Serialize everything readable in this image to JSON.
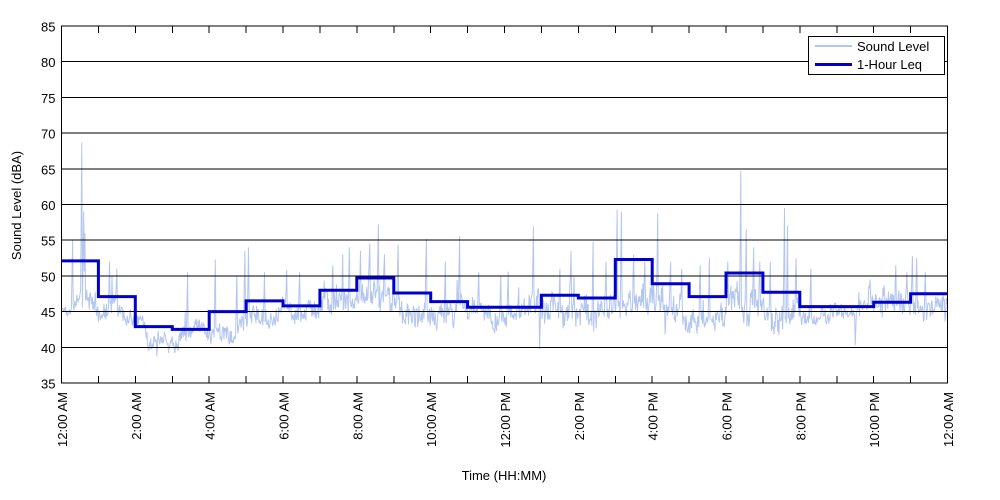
{
  "legend": {
    "items": [
      {
        "label": "Sound Level",
        "color": "#b3c6f0"
      },
      {
        "label": "1-Hour Leq",
        "color": "#0000cc"
      }
    ]
  },
  "chart_data": {
    "type": "line",
    "title": "",
    "xlabel": "Time (HH:MM)",
    "ylabel": "Sound Level (dBA)",
    "ylim": [
      35,
      85
    ],
    "xlim_hours": [
      0,
      24
    ],
    "grid": "horizontal-only",
    "legend_position": "top-right",
    "yticks": [
      35,
      40,
      45,
      50,
      55,
      60,
      65,
      70,
      75,
      80,
      85
    ],
    "minor_xtick_every_hours": 1,
    "xticks": [
      {
        "hour": 0,
        "label": "12:00 AM"
      },
      {
        "hour": 2,
        "label": "2:00 AM"
      },
      {
        "hour": 4,
        "label": "4:00 AM"
      },
      {
        "hour": 6,
        "label": "6:00 AM"
      },
      {
        "hour": 8,
        "label": "8:00 AM"
      },
      {
        "hour": 10,
        "label": "10:00 AM"
      },
      {
        "hour": 12,
        "label": "12:00 PM"
      },
      {
        "hour": 14,
        "label": "2:00 PM"
      },
      {
        "hour": 16,
        "label": "4:00 PM"
      },
      {
        "hour": 18,
        "label": "6:00 PM"
      },
      {
        "hour": 20,
        "label": "8:00 PM"
      },
      {
        "hour": 22,
        "label": "10:00 PM"
      },
      {
        "hour": 24,
        "label": "12:00 AM"
      }
    ],
    "series": [
      {
        "name": "Sound Level",
        "style": "noisy-1min-samples",
        "color": "#b3c6f0",
        "hourly_base": [
          44.8,
          45.6,
          40.8,
          41.3,
          43.2,
          44.8,
          45.0,
          46.3,
          48.3,
          45.2,
          44.8,
          44.2,
          43.9,
          44.8,
          45.2,
          46.0,
          45.2,
          44.8,
          46.0,
          45.2,
          44.4,
          43.8,
          45.2,
          46.2
        ],
        "hourly_amp": [
          1.1,
          1.3,
          1.0,
          0.9,
          1.2,
          1.3,
          1.3,
          1.7,
          1.8,
          1.8,
          1.6,
          1.5,
          1.6,
          1.6,
          1.8,
          2.0,
          2.2,
          1.6,
          2.0,
          2.0,
          1.0,
          1.2,
          1.6,
          1.5
        ],
        "spikes": [
          [
            0.3,
            55.0
          ],
          [
            0.55,
            68.7
          ],
          [
            0.6,
            59.0
          ],
          [
            0.63,
            56.0
          ],
          [
            1.3,
            52.0
          ],
          [
            1.5,
            51.0
          ],
          [
            3.42,
            50.5
          ],
          [
            4.16,
            52.3
          ],
          [
            4.75,
            50.0
          ],
          [
            4.97,
            53.5
          ],
          [
            5.07,
            54.0
          ],
          [
            5.5,
            50.5
          ],
          [
            6.1,
            50.8
          ],
          [
            6.45,
            50.5
          ],
          [
            7.35,
            51.5
          ],
          [
            7.62,
            53.0
          ],
          [
            7.8,
            54.0
          ],
          [
            8.1,
            53.5
          ],
          [
            8.35,
            54.5
          ],
          [
            8.58,
            57.2
          ],
          [
            8.75,
            53.0
          ],
          [
            9.11,
            54.4
          ],
          [
            9.89,
            55.2
          ],
          [
            10.4,
            52.0
          ],
          [
            10.78,
            55.6
          ],
          [
            11.3,
            50.5
          ],
          [
            11.9,
            50.0
          ],
          [
            12.1,
            50.6
          ],
          [
            12.78,
            56.9
          ],
          [
            13.5,
            51.0
          ],
          [
            13.8,
            53.5
          ],
          [
            14.4,
            54.8
          ],
          [
            14.75,
            52.0
          ],
          [
            15.05,
            59.3
          ],
          [
            15.17,
            59.0
          ],
          [
            15.5,
            53.0
          ],
          [
            15.8,
            52.0
          ],
          [
            16.15,
            58.8
          ],
          [
            16.5,
            52.0
          ],
          [
            16.8,
            51.0
          ],
          [
            17.3,
            51.5
          ],
          [
            17.55,
            52.5
          ],
          [
            18.05,
            52.0
          ],
          [
            18.4,
            64.7
          ],
          [
            18.55,
            56.5
          ],
          [
            18.75,
            54.0
          ],
          [
            18.92,
            52.0
          ],
          [
            19.2,
            52.0
          ],
          [
            19.58,
            59.5
          ],
          [
            19.67,
            57.0
          ],
          [
            19.9,
            52.5
          ],
          [
            20.3,
            51.0
          ],
          [
            21.9,
            49.5
          ],
          [
            22.6,
            51.5
          ],
          [
            22.9,
            50.5
          ],
          [
            23.05,
            52.8
          ],
          [
            23.17,
            52.5
          ],
          [
            23.4,
            50.5
          ]
        ],
        "dips": [
          [
            2.58,
            38.7
          ],
          [
            2.9,
            39.2
          ],
          [
            12.95,
            39.7
          ],
          [
            16.35,
            41.8
          ],
          [
            19.3,
            41.8
          ],
          [
            21.5,
            40.3
          ],
          [
            23.93,
            43.6
          ]
        ]
      },
      {
        "name": "1-Hour Leq",
        "style": "step-hourly",
        "color": "#0000cc",
        "hourly_values": [
          52.1,
          47.1,
          42.9,
          42.5,
          45.0,
          46.5,
          45.8,
          48.0,
          49.7,
          47.6,
          46.4,
          45.6,
          45.6,
          47.3,
          46.9,
          52.3,
          48.9,
          47.1,
          50.4,
          47.7,
          45.7,
          45.7,
          46.3,
          47.5
        ]
      }
    ]
  }
}
